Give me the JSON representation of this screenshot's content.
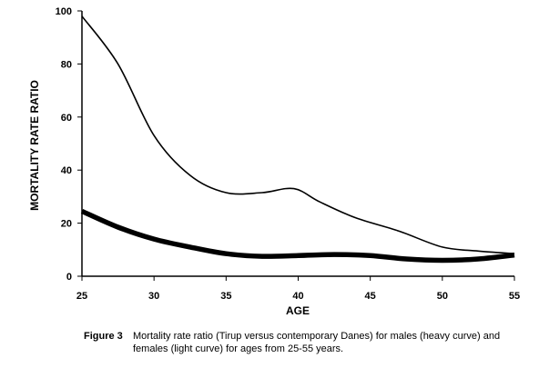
{
  "chart_data": {
    "type": "line",
    "xlabel": "AGE",
    "ylabel": "MORTALITY RATE RATIO",
    "xlim": [
      25,
      55
    ],
    "ylim": [
      0,
      100
    ],
    "x_ticks": [
      25,
      30,
      35,
      40,
      45,
      50,
      55
    ],
    "y_ticks": [
      0,
      20,
      40,
      60,
      80,
      100
    ],
    "grid": false,
    "series": [
      {
        "style": "thin",
        "x": [
          25,
          27.5,
          30,
          32.5,
          35,
          37.5,
          39.7,
          41.5,
          44,
          47,
          50,
          52.5,
          55
        ],
        "y": [
          98,
          80,
          53,
          38,
          31.5,
          31.5,
          33,
          28,
          22,
          17,
          11,
          9.5,
          8.5
        ]
      },
      {
        "style": "heavy",
        "x": [
          25,
          27.5,
          30,
          32.5,
          35,
          37.5,
          40,
          42.5,
          45,
          47.5,
          50,
          52.5,
          55
        ],
        "y": [
          24.5,
          18.5,
          14,
          11,
          8.5,
          7.5,
          7.8,
          8.2,
          7.8,
          6.5,
          6,
          6.5,
          8
        ]
      }
    ]
  },
  "caption": {
    "label": "Figure 3",
    "text": "Mortality rate ratio (Tirup versus contemporary Danes) for males (heavy curve) and females (light curve) for ages from 25-55 years."
  }
}
